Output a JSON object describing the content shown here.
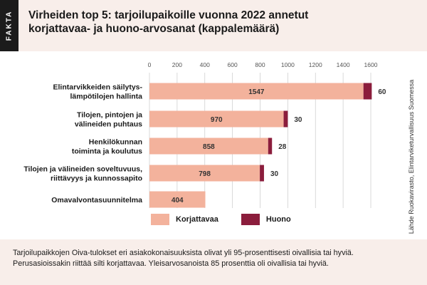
{
  "header": {
    "badge": "FAKTA",
    "title_line1": "Virheiden top 5: tarjoilupaikoille vuonna 2022 annetut",
    "title_line2": "korjattavaa- ja huono-arvosanat (kappalemäärä)"
  },
  "legend": {
    "korjattavaa": "Korjattavaa",
    "huono": "Huono"
  },
  "footer": {
    "line1": "Tarjoilupaikkojen Oiva-tulokset eri asiakokonaisuuksista olivat yli 95-prosenttisesti oivallisia tai hyviä.",
    "line2": "Perusasioissakin riittää silti korjattavaa. Yleisarvosanoista 85 prosenttia oli oivallisia tai hyviä."
  },
  "source": "Lähde Ruokavirasto, Elintarviketurvallisuus Suomessa",
  "chart_data": {
    "type": "bar",
    "orientation": "horizontal",
    "stacked": true,
    "categories": [
      [
        "Elintarvikkeiden säilytys-",
        "lämpötilojen hallinta"
      ],
      [
        "Tilojen, pintojen ja",
        "välineiden puhtaus"
      ],
      [
        "Henkilökunnan",
        "toiminta ja koulutus"
      ],
      [
        "Tilojen ja välineiden soveltuvuus,",
        "riittävyys ja kunnossapito"
      ],
      [
        "Omavalvontasuunnitelma"
      ]
    ],
    "series": [
      {
        "name": "Korjattavaa",
        "color": "#f3b29c",
        "values": [
          1547,
          970,
          858,
          798,
          404
        ]
      },
      {
        "name": "Huono",
        "color": "#8b1d3c",
        "values": [
          60,
          30,
          28,
          30,
          0
        ]
      }
    ],
    "xlim": [
      0,
      1600
    ],
    "xticks": [
      0,
      200,
      400,
      600,
      800,
      1000,
      1200,
      1400,
      1600
    ],
    "xtick_labels": [
      "0",
      "200",
      "400",
      "600",
      "800",
      "1000",
      "1200",
      "1400",
      "1600"
    ],
    "grid": true,
    "axis_position": "top",
    "legend_position": "bottom"
  }
}
